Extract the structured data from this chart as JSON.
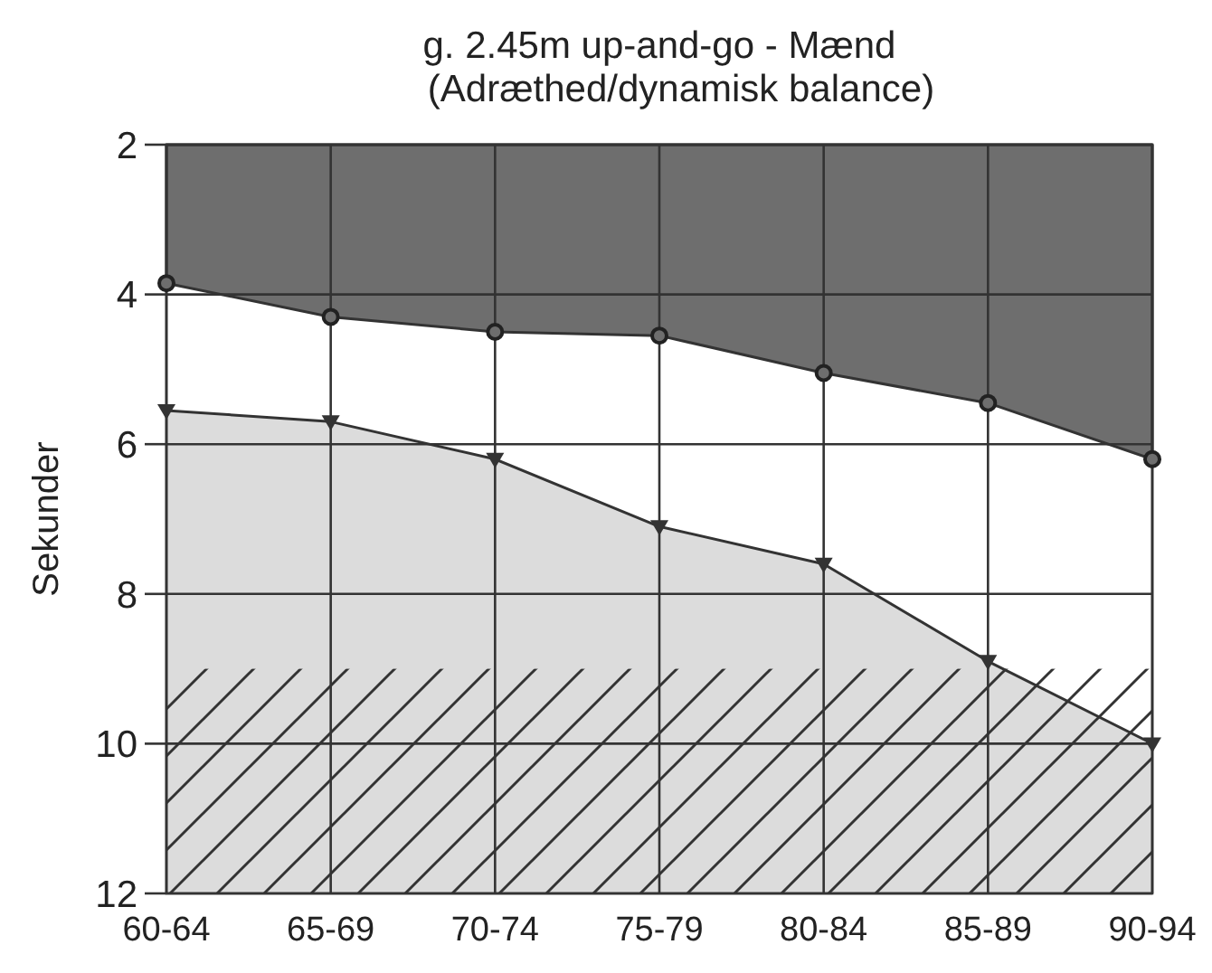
{
  "chart_data": {
    "type": "area",
    "title": "g. 2.45m up-and-go - Mænd\n(Adræthed/dynamisk balance)",
    "ylabel": "Sekunder",
    "categories": [
      "60-64",
      "65-69",
      "70-74",
      "75-79",
      "80-84",
      "85-89",
      "90-94"
    ],
    "series": [
      {
        "color": "#6e6e6e",
        "marker": "circle",
        "values": [
          3.85,
          4.3,
          4.5,
          4.55,
          5.05,
          5.45,
          6.2
        ]
      },
      {
        "type": "line",
        "color": "#333333",
        "marker": "triangle",
        "values": [
          5.55,
          5.7,
          6.2,
          7.1,
          7.6,
          8.9,
          10
        ],
        "lower": [
          5.55,
          5.7,
          6.2,
          7.1,
          7.6,
          8.9,
          10
        ],
        "upper": [
          12,
          12,
          12,
          12,
          12,
          12,
          12
        ]
      }
    ],
    "ylim": [
      12,
      2
    ],
    "yticks": [
      2,
      4,
      6,
      8,
      10,
      12
    ],
    "grid": true,
    "bands": [
      {
        "axis": "y",
        "from": 9,
        "to": 12,
        "color": "#333333"
      }
    ]
  }
}
